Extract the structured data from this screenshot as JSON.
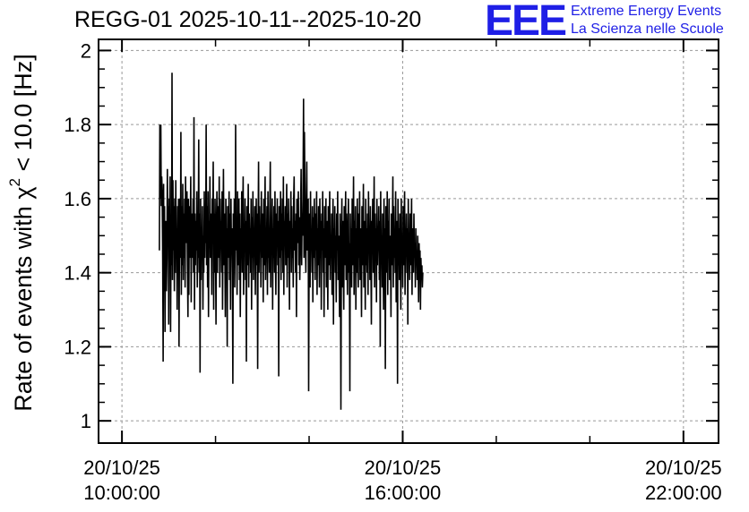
{
  "title": "REGG-01 2025-10-11--2025-10-20",
  "logo": {
    "letters": "EEE",
    "line1": "Extreme Energy Events",
    "line2": "La Scienza nelle Scuole",
    "color": "#1f1fe6"
  },
  "chart_data": {
    "type": "line",
    "title": "REGG-01 2025-10-11--2025-10-20",
    "xlabel": "",
    "ylabel": "Rate of events with χ² < 10.0 [Hz]",
    "ylabel_parts": {
      "pre": "Rate of events with χ",
      "sup": "2",
      "post": " < 10.0 [Hz]"
    },
    "xlim": [
      "20/10/25 09:30:00",
      "22:45:00"
    ],
    "ylim": [
      0.94,
      2.03
    ],
    "grid": true,
    "yticks": [
      1,
      1.2,
      1.4,
      1.6,
      1.8,
      2
    ],
    "ytick_labels": [
      "1",
      "1.2",
      "1.4",
      "1.6",
      "1.8",
      "2"
    ],
    "xticks": [
      {
        "date": "20/10/25",
        "time": "10:00:00",
        "hour": 10
      },
      {
        "date": "20/10/25",
        "time": "16:00:00",
        "hour": 16
      },
      {
        "date": "20/10/25",
        "time": "22:00:00",
        "hour": 22
      }
    ],
    "minor_x_hours": [
      12,
      14,
      18,
      20
    ],
    "series": [
      {
        "color": "#000000",
        "x_start_hour": 10.8,
        "x_step_hours": 0.01,
        "values": [
          1.46,
          1.8,
          1.6,
          1.8,
          1.58,
          1.66,
          1.62,
          1.44,
          1.16,
          1.64,
          1.35,
          1.58,
          1.24,
          1.46,
          1.54,
          1.35,
          1.44,
          1.68,
          1.52,
          1.58,
          1.26,
          1.6,
          1.48,
          1.66,
          1.24,
          1.55,
          1.42,
          1.94,
          1.38,
          1.65,
          1.46,
          1.58,
          1.35,
          1.6,
          1.4,
          1.65,
          1.46,
          1.52,
          1.3,
          1.58,
          1.44,
          1.6,
          1.2,
          1.52,
          1.6,
          1.44,
          1.78,
          1.34,
          1.58,
          1.42,
          1.64,
          1.38,
          1.56,
          1.44,
          1.6,
          1.36,
          1.66,
          1.48,
          1.54,
          1.62,
          1.42,
          1.28,
          1.6,
          1.34,
          1.58,
          1.44,
          1.52,
          1.66,
          1.32,
          1.56,
          1.44,
          1.48,
          1.6,
          1.4,
          1.82,
          1.3,
          1.56,
          1.42,
          1.54,
          1.46,
          1.62,
          1.36,
          1.5,
          1.44,
          1.76,
          1.4,
          1.56,
          1.13,
          1.6,
          1.38,
          1.52,
          1.44,
          1.58,
          1.3,
          1.5,
          1.4,
          1.62,
          1.44,
          1.56,
          1.48,
          1.8,
          1.42,
          1.58,
          1.36,
          1.62,
          1.28,
          1.54,
          1.48,
          1.66,
          1.44,
          1.56,
          1.5,
          1.34,
          1.6,
          1.52,
          1.7,
          1.3,
          1.56,
          1.4,
          1.6,
          1.46,
          1.26,
          1.52,
          1.62,
          1.4,
          1.58,
          1.44,
          1.5,
          1.66,
          1.36,
          1.6,
          1.48,
          1.54,
          1.4,
          1.62,
          1.3,
          1.5,
          1.68,
          1.42,
          1.56,
          1.46,
          1.28,
          1.6,
          1.4,
          1.52,
          1.2,
          1.58,
          1.44,
          1.5,
          1.62,
          1.38,
          1.56,
          1.3,
          1.6,
          1.46,
          1.52,
          1.4,
          1.1,
          1.56,
          1.44,
          1.6,
          1.36,
          1.5,
          1.8,
          1.46,
          1.54,
          1.34,
          1.62,
          1.42,
          1.5,
          1.6,
          1.38,
          1.56,
          1.28,
          1.52,
          1.44,
          1.62,
          1.4,
          1.55,
          1.66,
          1.34,
          1.52,
          1.46,
          1.6,
          1.38,
          1.54,
          1.16,
          1.58,
          1.42,
          1.5,
          1.64,
          1.36,
          1.56,
          1.46,
          1.52,
          1.4,
          1.6,
          1.3,
          1.55,
          1.44,
          1.62,
          1.38,
          1.52,
          1.46,
          1.58,
          1.34,
          1.5,
          1.6,
          1.42,
          1.56,
          1.14,
          1.52,
          1.7,
          1.4,
          1.58,
          1.46,
          1.52,
          1.36,
          1.62,
          1.44,
          1.56,
          1.48,
          1.32,
          1.6,
          1.42,
          1.54,
          1.66,
          1.38,
          1.5,
          1.46,
          1.58,
          1.34,
          1.62,
          1.44,
          1.52,
          1.4,
          1.56,
          1.7,
          1.36,
          1.54,
          1.48,
          1.6,
          1.3,
          1.52,
          1.44,
          1.58,
          1.4,
          1.62,
          1.46,
          1.34,
          1.56,
          1.5,
          1.6,
          1.42,
          1.54,
          1.12,
          1.58,
          1.44,
          1.5,
          1.62,
          1.38,
          1.56,
          1.46,
          1.6,
          1.4,
          1.66,
          1.34,
          1.54,
          1.48,
          1.58,
          1.42,
          1.52,
          1.64,
          1.36,
          1.56,
          1.44,
          1.6,
          1.46,
          1.3,
          1.54,
          1.5,
          1.62,
          1.4,
          1.58,
          1.44,
          1.52,
          1.36,
          1.6,
          1.66,
          1.46,
          1.54,
          1.4,
          1.56,
          1.28,
          1.6,
          1.48,
          1.52,
          1.62,
          1.42,
          1.55,
          1.38,
          1.46,
          1.58,
          1.68,
          1.42,
          1.56,
          1.5,
          1.6,
          1.87,
          1.44,
          1.78,
          1.62,
          1.48,
          1.4,
          1.58,
          1.7,
          1.46,
          1.52,
          1.6,
          1.08,
          1.44,
          1.56,
          1.36,
          1.62,
          1.46,
          1.52,
          1.4,
          1.58,
          1.32,
          1.55,
          1.44,
          1.6,
          1.5,
          1.38,
          1.56,
          1.46,
          1.62,
          1.34,
          1.52,
          1.42,
          1.58,
          1.48,
          1.36,
          1.6,
          1.44,
          1.54,
          1.3,
          1.56,
          1.46,
          1.62,
          1.4,
          1.52,
          1.28,
          1.58,
          1.44,
          1.5,
          1.6,
          1.36,
          1.54,
          1.46,
          1.3,
          1.58,
          1.42,
          1.52,
          1.62,
          1.38,
          1.5,
          1.44,
          1.56,
          1.34,
          1.48,
          1.6,
          1.26,
          1.52,
          1.44,
          1.58,
          1.4,
          1.5,
          1.32,
          1.56,
          1.46,
          1.62,
          1.38,
          1.5,
          1.44,
          1.28,
          1.56,
          1.4,
          1.03,
          1.5,
          1.6,
          1.36,
          1.54,
          1.44,
          1.3,
          1.58,
          1.42,
          1.5,
          1.62,
          1.38,
          1.56,
          1.46,
          1.34,
          1.52,
          1.6,
          1.4,
          1.48,
          1.08,
          1.56,
          1.44,
          1.52,
          1.36,
          1.6,
          1.42,
          1.5,
          1.66,
          1.34,
          1.54,
          1.46,
          1.58,
          1.3,
          1.52,
          1.4,
          1.6,
          1.48,
          1.36,
          1.56,
          1.44,
          1.62,
          1.38,
          1.52,
          1.46,
          1.28,
          1.58,
          1.42,
          1.5,
          1.64,
          1.36,
          1.54,
          1.46,
          1.3,
          1.6,
          1.42,
          1.52,
          1.4,
          1.56,
          1.34,
          1.62,
          1.46,
          1.5,
          1.38,
          1.58,
          1.44,
          1.26,
          1.54,
          1.48,
          1.6,
          1.4,
          1.5,
          1.66,
          1.36,
          1.56,
          1.44,
          1.52,
          1.32,
          1.6,
          1.42,
          1.5,
          1.46,
          1.58,
          1.38,
          1.54,
          1.2,
          1.62,
          1.44,
          1.5,
          1.36,
          1.56,
          1.48,
          1.3,
          1.6,
          1.42,
          1.52,
          1.14,
          1.58,
          1.46,
          1.4,
          1.62,
          1.34,
          1.54,
          1.44,
          1.6,
          1.38,
          1.5,
          1.46,
          1.28,
          1.56,
          1.42,
          1.52,
          1.66,
          1.36,
          1.58,
          1.44,
          1.5,
          1.4,
          1.62,
          1.32,
          1.54,
          1.48,
          1.1,
          1.6,
          1.42,
          1.52,
          1.38,
          1.56,
          1.46,
          1.3,
          1.6,
          1.44,
          1.5,
          1.36,
          1.58,
          1.42,
          1.54,
          1.62,
          1.34,
          1.5,
          1.46,
          1.56,
          1.4,
          1.52,
          1.26,
          1.6,
          1.44,
          1.48,
          1.38,
          1.56,
          1.42,
          1.5,
          1.6,
          1.34,
          1.52,
          1.46,
          1.4,
          1.56,
          1.44,
          1.48,
          1.36,
          1.52,
          1.42,
          1.46,
          1.38,
          1.5,
          1.44,
          1.32,
          1.48,
          1.4,
          1.46,
          1.3,
          1.44,
          1.38,
          1.42,
          1.36,
          1.4
        ]
      }
    ]
  }
}
